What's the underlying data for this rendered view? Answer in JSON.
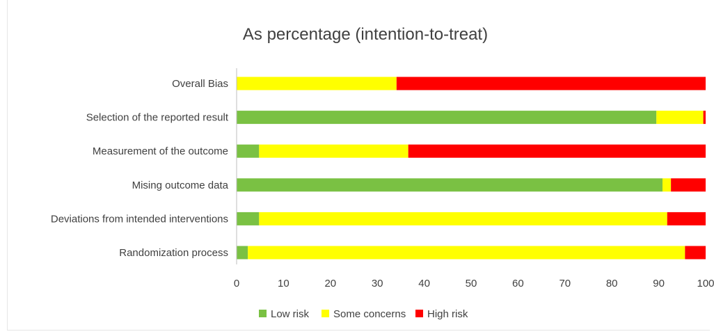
{
  "chart_data": {
    "type": "bar",
    "orientation": "horizontal",
    "stacked": true,
    "title": "As percentage (intention-to-treat)",
    "categories": [
      "Overall Bias",
      "Selection of the reported result",
      "Measurement of the outcome",
      "Mising outcome data",
      "Deviations from intended interventions",
      "Randomization process"
    ],
    "series": [
      {
        "name": "Low risk",
        "color": "#7ac143",
        "values": [
          0,
          89.5,
          4.8,
          90.8,
          4.8,
          2.4
        ]
      },
      {
        "name": "Some concerns",
        "color": "#ffff00",
        "values": [
          34.1,
          10,
          31.8,
          1.8,
          87,
          93.2
        ]
      },
      {
        "name": "High risk",
        "color": "#ff0000",
        "values": [
          65.9,
          0.5,
          63.4,
          7.4,
          8.2,
          4.4
        ]
      }
    ],
    "xlim": [
      0,
      100
    ],
    "xticks": [
      "0",
      "10",
      "20",
      "30",
      "40",
      "50",
      "60",
      "70",
      "80",
      "90",
      "100"
    ],
    "grid": false,
    "legend_position": "bottom"
  }
}
